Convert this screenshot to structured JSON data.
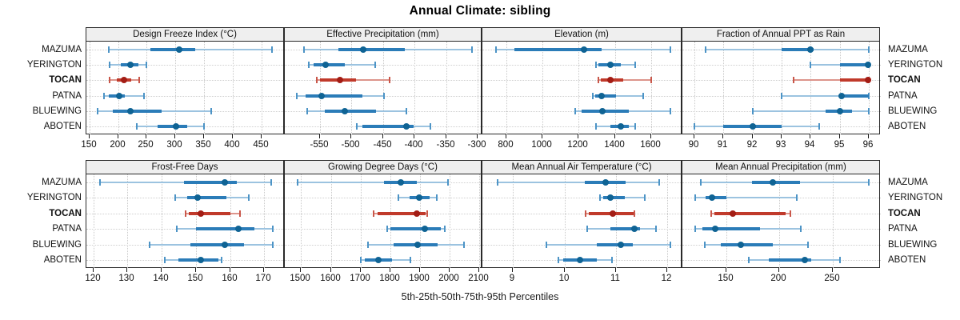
{
  "title": "Annual Climate: sibling",
  "xlabel": "5th-25th-50th-75th-95th Percentiles",
  "colors": {
    "blue_line": "#9cc3e0",
    "blue_cap": "#4d94c6",
    "blue_bar": "#2b7cb8",
    "blue_dot": "#0f6394",
    "red_line": "#dd958c",
    "red_cap": "#c9574a",
    "red_bar": "#c03a2b",
    "red_dot": "#a31d15",
    "panel_border": "#2a2a2a",
    "header_bg": "#efefef",
    "grid": "#c9c9c9"
  },
  "chart_data": {
    "type": "dot-whisker-trellis",
    "title": "Annual Climate: sibling",
    "xlabel": "5th-25th-50th-75th-95th Percentiles",
    "percentiles": [
      5,
      25,
      50,
      75,
      95
    ],
    "legend_position": "none",
    "grid": "dotted",
    "stations": [
      "MAZUMA",
      "YERINGTON",
      "TOCAN",
      "PATNA",
      "BLUEWING",
      "ABOTEN"
    ],
    "highlighted_station": "TOCAN",
    "panels": [
      {
        "title": "Design Freeze Index (°C)",
        "xlim": [
          145,
          490
        ],
        "ticks": [
          150,
          200,
          250,
          300,
          350,
          400,
          450
        ],
        "values": [
          [
            184,
            256,
            306,
            334,
            468
          ],
          [
            185,
            205,
            221,
            235,
            250
          ],
          [
            185,
            198,
            211,
            223,
            237
          ],
          [
            175,
            184,
            202,
            212,
            245
          ],
          [
            165,
            191,
            222,
            276,
            362
          ],
          [
            232,
            269,
            301,
            320,
            350
          ]
        ]
      },
      {
        "title": "Effective Precipitation (mm)",
        "xlim": [
          -605,
          -293
        ],
        "ticks": [
          -550,
          -500,
          -450,
          -400,
          -350,
          -300
        ],
        "values": [
          [
            -575,
            -520,
            -481,
            -416,
            -310
          ],
          [
            -567,
            -559,
            -541,
            -510,
            -462
          ],
          [
            -555,
            -549,
            -518,
            -493,
            -439
          ],
          [
            -586,
            -572,
            -547,
            -483,
            -448
          ],
          [
            -570,
            -542,
            -510,
            -461,
            -413
          ],
          [
            -491,
            -483,
            -413,
            -402,
            -375
          ]
        ]
      },
      {
        "title": "Elevation (m)",
        "xlim": [
          670,
          1770
        ],
        "ticks": [
          800,
          1000,
          1200,
          1400,
          1600
        ],
        "values": [
          [
            745,
            845,
            1230,
            1325,
            1705
          ],
          [
            1295,
            1310,
            1375,
            1430,
            1510
          ],
          [
            1310,
            1320,
            1375,
            1445,
            1600
          ],
          [
            1275,
            1290,
            1325,
            1405,
            1555
          ],
          [
            1180,
            1215,
            1330,
            1475,
            1705
          ],
          [
            1295,
            1375,
            1430,
            1475,
            1510
          ]
        ]
      },
      {
        "title": "Fraction of Annual PPT as Rain",
        "xlim": [
          89.6,
          96.4
        ],
        "ticks": [
          90,
          91,
          92,
          93,
          94,
          95,
          96
        ],
        "values": [
          [
            90.4,
            93,
            94,
            94.1,
            96
          ],
          [
            94,
            95,
            95.95,
            96,
            96
          ],
          [
            93.4,
            95,
            95.95,
            96,
            96
          ],
          [
            93,
            95,
            95.05,
            96,
            96
          ],
          [
            92,
            94.5,
            95,
            95.4,
            96
          ],
          [
            90,
            91,
            92,
            93,
            94.3
          ]
        ]
      },
      {
        "title": "Frost-Free Days",
        "xlim": [
          118,
          176
        ],
        "ticks": [
          120,
          130,
          140,
          150,
          160,
          170
        ],
        "values": [
          [
            122,
            146.5,
            158.5,
            162,
            172
          ],
          [
            144,
            147.5,
            150.5,
            159,
            165.5
          ],
          [
            147,
            148,
            151.5,
            160,
            163
          ],
          [
            144.5,
            150,
            162.5,
            167,
            172.5
          ],
          [
            136.5,
            148.5,
            158.5,
            164,
            172.5
          ],
          [
            141,
            145,
            151.5,
            156.5,
            157.5
          ]
        ]
      },
      {
        "title": "Growing Degree Days (°C)",
        "xlim": [
          1445,
          2110
        ],
        "ticks": [
          1500,
          1600,
          1700,
          1800,
          1900,
          2000,
          2100
        ],
        "values": [
          [
            1487,
            1780,
            1835,
            1890,
            1995
          ],
          [
            1826,
            1866,
            1897,
            1932,
            1956
          ],
          [
            1745,
            1756,
            1890,
            1919,
            1925
          ],
          [
            1790,
            1800,
            1915,
            1969,
            1983
          ],
          [
            1726,
            1812,
            1891,
            1958,
            2048
          ],
          [
            1700,
            1713,
            1760,
            1807,
            1867
          ]
        ]
      },
      {
        "title": "Mean Annual Air Temperature (°C)",
        "xlim": [
          8.4,
          12.3
        ],
        "ticks": [
          9,
          10,
          11,
          12
        ],
        "values": [
          [
            8.7,
            10.4,
            10.8,
            11.2,
            11.85
          ],
          [
            10.69,
            10.76,
            10.89,
            11.17,
            11.57
          ],
          [
            10.41,
            10.47,
            10.95,
            11.35,
            11.37
          ],
          [
            10.45,
            10.9,
            11.36,
            11.47,
            11.78
          ],
          [
            9.65,
            10.63,
            11.1,
            11.33,
            12.07
          ],
          [
            9.88,
            9.98,
            10.31,
            10.63,
            10.93
          ]
        ]
      },
      {
        "title": "Mean Annual Precipitation (mm)",
        "xlim": [
          109,
          295
        ],
        "ticks": [
          150,
          200,
          250
        ],
        "values": [
          [
            126,
            174,
            194,
            219,
            284
          ],
          [
            121,
            131,
            137,
            150,
            216
          ],
          [
            136,
            139,
            156,
            206,
            210
          ],
          [
            121,
            128,
            140,
            182,
            220
          ],
          [
            130,
            145,
            164,
            194,
            227
          ],
          [
            171,
            190,
            224,
            230,
            257
          ]
        ]
      }
    ]
  }
}
